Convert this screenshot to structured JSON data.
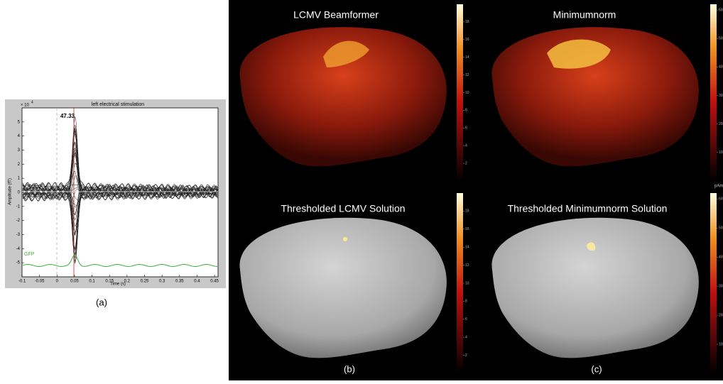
{
  "panel_a": {
    "title": "left electrical stimulation",
    "x_label": "Time (s)",
    "y_label": "Amplitude (fT)",
    "y_multiplier": "× 10",
    "y_multiplier_power": "4",
    "xlim": [
      -0.1,
      0.46
    ],
    "ylim": [
      -6,
      6
    ],
    "xticks": [
      -0.1,
      -0.05,
      0,
      0.05,
      0.1,
      0.15,
      0.2,
      0.25,
      0.3,
      0.35,
      0.4,
      0.45
    ],
    "yticks": [
      -5,
      -4,
      -3,
      -2,
      -1,
      0,
      1,
      2,
      3,
      4,
      5
    ],
    "peak_label": "47.33",
    "gfp_label": "GFP",
    "caption": "(a)"
  },
  "panel_b": {
    "top_title": "LCMV Beamformer",
    "bottom_title": "Thresholded LCMV Solution",
    "colorbar_ticks": [
      2,
      4,
      6,
      8,
      10,
      12,
      14,
      16,
      18
    ],
    "colorbar_lim": [
      0,
      20
    ],
    "caption": "(b)"
  },
  "panel_c": {
    "top_title": "Minimumnorm",
    "bottom_title": "Thresholded Minimumnorm Solution",
    "colorbar_ticks": [
      1000,
      2000,
      3000,
      4000,
      5000,
      6000
    ],
    "colorbar_lim": [
      0,
      6200
    ],
    "unit": "pAm",
    "caption": "(c)"
  }
}
